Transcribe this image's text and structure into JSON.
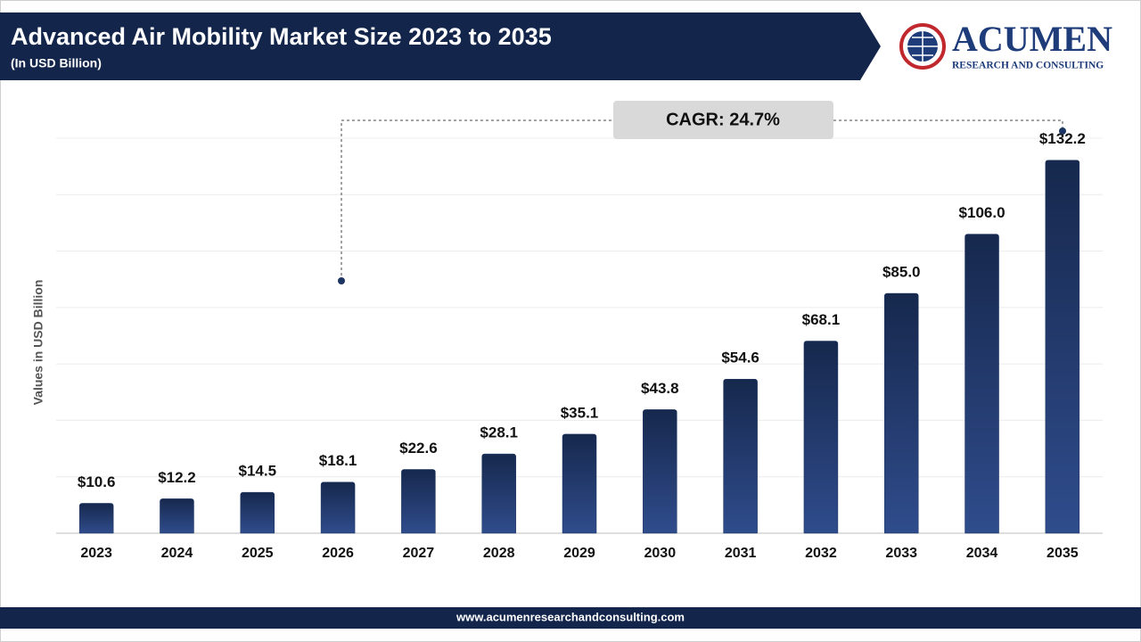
{
  "chart_data": {
    "type": "bar",
    "title": "Advanced Air Mobility Market Size 2023 to 2035",
    "subtitle": "(In USD Billion)",
    "y_label": "Values in USD Billion",
    "annotation": "CAGR: 24.7%",
    "categories": [
      "2023",
      "2024",
      "2025",
      "2026",
      "2027",
      "2028",
      "2029",
      "2030",
      "2031",
      "2032",
      "2033",
      "2034",
      "2035"
    ],
    "values": [
      10.6,
      12.2,
      14.5,
      18.1,
      22.6,
      28.1,
      35.1,
      43.8,
      54.6,
      68.1,
      85.0,
      106.0,
      132.2
    ],
    "value_labels": [
      "$10.6",
      "$12.2",
      "$14.5",
      "$18.1",
      "$22.6",
      "$28.1",
      "$35.1",
      "$43.8",
      "$54.6",
      "$68.1",
      "$85.0",
      "$106.0",
      "$132.2"
    ],
    "color": "#1b3461",
    "ylim": [
      0,
      140
    ],
    "yticks": [
      0,
      20,
      40,
      60,
      80,
      100,
      120,
      140
    ],
    "ytick_labels": false,
    "grid": true
  },
  "logo": {
    "name": "ACUMEN",
    "tagline": "RESEARCH AND CONSULTING"
  },
  "footer": "www.acumenresearchandconsulting.com"
}
